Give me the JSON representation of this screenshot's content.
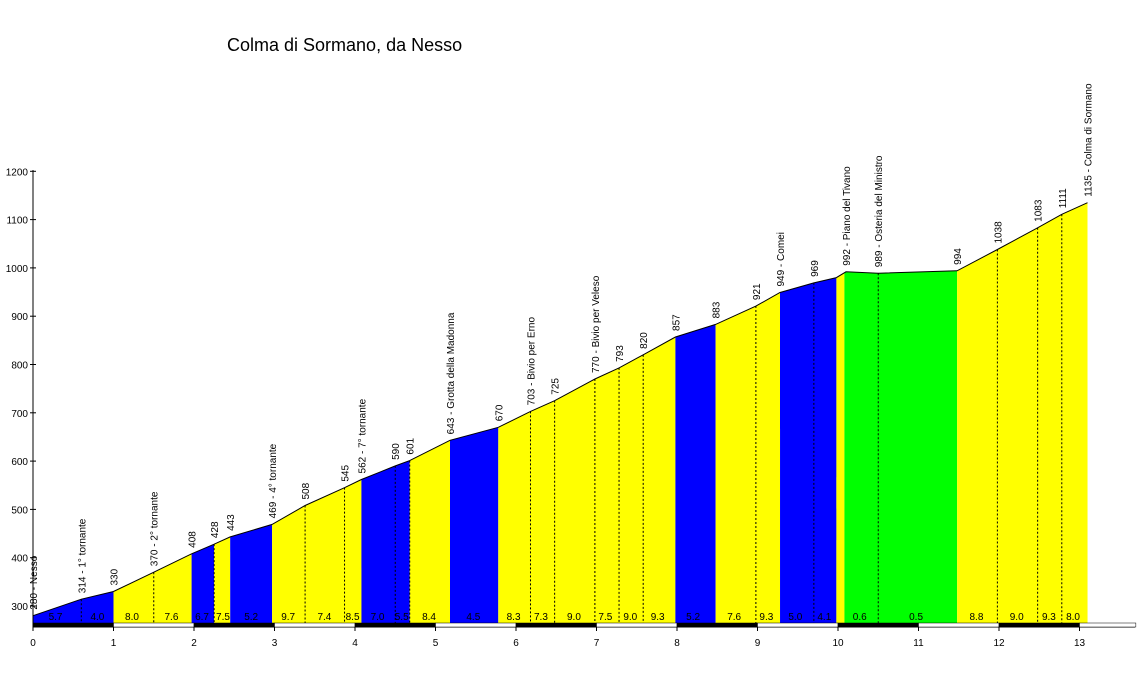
{
  "chart_data": {
    "type": "area",
    "title": "Colma di Sormano, da Nesso",
    "xlabel": "",
    "ylabel": "",
    "xlim": [
      0,
      13.7
    ],
    "ylim": [
      260,
      1200
    ],
    "x_ticks": [
      "0",
      "1",
      "2",
      "3",
      "4",
      "5",
      "6",
      "7",
      "8",
      "9",
      "10",
      "11",
      "12",
      "13"
    ],
    "y_ticks": [
      "300",
      "400",
      "500",
      "600",
      "700",
      "800",
      "900",
      "1000",
      "1100",
      "1200"
    ],
    "profile": [
      {
        "x": 0.0,
        "y": 280
      },
      {
        "x": 0.6,
        "y": 314
      },
      {
        "x": 1.0,
        "y": 330
      },
      {
        "x": 1.5,
        "y": 370
      },
      {
        "x": 1.97,
        "y": 408
      },
      {
        "x": 2.25,
        "y": 428
      },
      {
        "x": 2.45,
        "y": 443
      },
      {
        "x": 2.97,
        "y": 469
      },
      {
        "x": 3.38,
        "y": 508
      },
      {
        "x": 3.87,
        "y": 545
      },
      {
        "x": 4.08,
        "y": 562
      },
      {
        "x": 4.5,
        "y": 590
      },
      {
        "x": 4.68,
        "y": 601
      },
      {
        "x": 5.18,
        "y": 643
      },
      {
        "x": 5.78,
        "y": 670
      },
      {
        "x": 6.18,
        "y": 703
      },
      {
        "x": 6.48,
        "y": 725
      },
      {
        "x": 6.98,
        "y": 770
      },
      {
        "x": 7.28,
        "y": 793
      },
      {
        "x": 7.58,
        "y": 820
      },
      {
        "x": 7.98,
        "y": 857
      },
      {
        "x": 8.48,
        "y": 883
      },
      {
        "x": 8.98,
        "y": 921
      },
      {
        "x": 9.28,
        "y": 949
      },
      {
        "x": 9.7,
        "y": 969
      },
      {
        "x": 9.98,
        "y": 980
      },
      {
        "x": 10.1,
        "y": 992
      },
      {
        "x": 10.5,
        "y": 989
      },
      {
        "x": 11.48,
        "y": 994
      },
      {
        "x": 11.98,
        "y": 1038
      },
      {
        "x": 12.48,
        "y": 1083
      },
      {
        "x": 12.78,
        "y": 1111
      },
      {
        "x": 13.1,
        "y": 1135
      }
    ],
    "segments": [
      {
        "x0": 0.0,
        "x1": 1.0,
        "color": "#0000ff"
      },
      {
        "x0": 1.0,
        "x1": 1.97,
        "color": "#ffff00"
      },
      {
        "x0": 1.97,
        "x1": 2.25,
        "color": "#0000ff"
      },
      {
        "x0": 2.25,
        "x1": 2.45,
        "color": "#ffff00"
      },
      {
        "x0": 2.45,
        "x1": 2.97,
        "color": "#0000ff"
      },
      {
        "x0": 2.97,
        "x1": 4.08,
        "color": "#ffff00"
      },
      {
        "x0": 4.08,
        "x1": 4.68,
        "color": "#0000ff"
      },
      {
        "x0": 4.68,
        "x1": 5.18,
        "color": "#ffff00"
      },
      {
        "x0": 5.18,
        "x1": 5.78,
        "color": "#0000ff"
      },
      {
        "x0": 5.78,
        "x1": 7.98,
        "color": "#ffff00"
      },
      {
        "x0": 7.98,
        "x1": 8.48,
        "color": "#0000ff"
      },
      {
        "x0": 8.48,
        "x1": 9.28,
        "color": "#ffff00"
      },
      {
        "x0": 9.28,
        "x1": 9.98,
        "color": "#0000ff"
      },
      {
        "x0": 9.98,
        "x1": 10.08,
        "color": "#ffff00"
      },
      {
        "x0": 10.08,
        "x1": 11.48,
        "color": "#00ff00"
      },
      {
        "x0": 11.48,
        "x1": 13.1,
        "color": "#ffff00"
      }
    ],
    "dashed_lines": [
      0.6,
      1.5,
      2.25,
      3.38,
      3.87,
      4.5,
      4.68,
      6.18,
      6.48,
      6.98,
      7.28,
      7.58,
      8.98,
      9.7,
      10.5,
      11.98,
      12.48,
      12.78
    ],
    "point_labels": [
      {
        "x": 0.0,
        "y": 280,
        "text": "280 - Nesso"
      },
      {
        "x": 0.6,
        "y": 314,
        "text": "314 - 1° tornante"
      },
      {
        "x": 1.0,
        "y": 330,
        "text": "330"
      },
      {
        "x": 1.5,
        "y": 370,
        "text": "370 - 2° tornante"
      },
      {
        "x": 1.97,
        "y": 408,
        "text": "408"
      },
      {
        "x": 2.25,
        "y": 428,
        "text": "428"
      },
      {
        "x": 2.45,
        "y": 443,
        "text": "443"
      },
      {
        "x": 2.97,
        "y": 469,
        "text": "469 - 4° tornante"
      },
      {
        "x": 3.38,
        "y": 508,
        "text": "508"
      },
      {
        "x": 3.87,
        "y": 545,
        "text": "545"
      },
      {
        "x": 4.08,
        "y": 562,
        "text": "562 - 7° tornante"
      },
      {
        "x": 4.5,
        "y": 590,
        "text": "590"
      },
      {
        "x": 4.68,
        "y": 601,
        "text": "601"
      },
      {
        "x": 5.18,
        "y": 643,
        "text": "643 - Grotta della Madonna"
      },
      {
        "x": 5.78,
        "y": 670,
        "text": "670"
      },
      {
        "x": 6.18,
        "y": 703,
        "text": "703 - Bivio per Erno"
      },
      {
        "x": 6.48,
        "y": 725,
        "text": "725"
      },
      {
        "x": 6.98,
        "y": 770,
        "text": "770 - Bivio per Veleso"
      },
      {
        "x": 7.28,
        "y": 793,
        "text": "793"
      },
      {
        "x": 7.58,
        "y": 820,
        "text": "820"
      },
      {
        "x": 7.98,
        "y": 857,
        "text": "857"
      },
      {
        "x": 8.48,
        "y": 883,
        "text": "883"
      },
      {
        "x": 8.98,
        "y": 921,
        "text": "921"
      },
      {
        "x": 9.28,
        "y": 949,
        "text": "949 - Comei"
      },
      {
        "x": 9.7,
        "y": 969,
        "text": "969"
      },
      {
        "x": 10.1,
        "y": 992,
        "text": "992 - Piano del Tivano"
      },
      {
        "x": 10.5,
        "y": 989,
        "text": "989 - Osteria del Ministro"
      },
      {
        "x": 11.48,
        "y": 994,
        "text": "994"
      },
      {
        "x": 11.98,
        "y": 1038,
        "text": "1038"
      },
      {
        "x": 12.48,
        "y": 1083,
        "text": "1083"
      },
      {
        "x": 12.78,
        "y": 1111,
        "text": "1111"
      },
      {
        "x": 13.1,
        "y": 1135,
        "text": "1135 - Colma di Sormano"
      }
    ],
    "gradient_labels": [
      {
        "x": 0.28,
        "text": "5.7"
      },
      {
        "x": 0.8,
        "text": "4.0"
      },
      {
        "x": 1.23,
        "text": "8.0"
      },
      {
        "x": 1.72,
        "text": "7.6"
      },
      {
        "x": 2.1,
        "text": "6.7"
      },
      {
        "x": 2.36,
        "text": "7.5"
      },
      {
        "x": 2.71,
        "text": "5.2"
      },
      {
        "x": 3.17,
        "text": "9.7"
      },
      {
        "x": 3.62,
        "text": "7.4"
      },
      {
        "x": 3.97,
        "text": "8.5"
      },
      {
        "x": 4.28,
        "text": "7.0"
      },
      {
        "x": 4.58,
        "text": "5.5"
      },
      {
        "x": 4.92,
        "text": "8.4"
      },
      {
        "x": 5.47,
        "text": "4.5"
      },
      {
        "x": 5.97,
        "text": "8.3"
      },
      {
        "x": 6.31,
        "text": "7.3"
      },
      {
        "x": 6.72,
        "text": "9.0"
      },
      {
        "x": 7.11,
        "text": "7.5"
      },
      {
        "x": 7.42,
        "text": "9.0"
      },
      {
        "x": 7.76,
        "text": "9.3"
      },
      {
        "x": 8.2,
        "text": "5.2"
      },
      {
        "x": 8.71,
        "text": "7.6"
      },
      {
        "x": 9.11,
        "text": "9.3"
      },
      {
        "x": 9.47,
        "text": "5.0"
      },
      {
        "x": 9.83,
        "text": "4.1"
      },
      {
        "x": 10.27,
        "text": "0.6"
      },
      {
        "x": 10.97,
        "text": "0.5"
      },
      {
        "x": 11.72,
        "text": "8.8"
      },
      {
        "x": 12.22,
        "text": "9.0"
      },
      {
        "x": 12.62,
        "text": "9.3"
      },
      {
        "x": 12.92,
        "text": "8.0"
      }
    ],
    "legend": "none",
    "grid": false
  }
}
